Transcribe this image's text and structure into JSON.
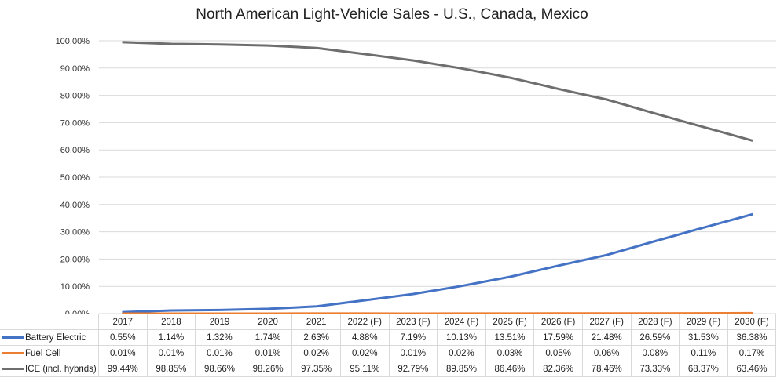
{
  "chart_data": {
    "type": "line",
    "title": "North American Light-Vehicle Sales - U.S., Canada, Mexico",
    "xlabel": "",
    "ylabel": "",
    "ylim": [
      0,
      100
    ],
    "yticks": [
      "0.00%",
      "10.00%",
      "20.00%",
      "30.00%",
      "40.00%",
      "50.00%",
      "60.00%",
      "70.00%",
      "80.00%",
      "90.00%",
      "100.00%"
    ],
    "grid": true,
    "legend": "data-table-bottom",
    "categories": [
      "2017",
      "2018",
      "2019",
      "2020",
      "2021",
      "2022 (F)",
      "2023 (F)",
      "2024 (F)",
      "2025 (F)",
      "2026 (F)",
      "2027 (F)",
      "2028 (F)",
      "2029 (F)",
      "2030 (F)"
    ],
    "series": [
      {
        "name": "Battery Electric",
        "color": "#4472c4",
        "values": [
          0.55,
          1.14,
          1.32,
          1.74,
          2.63,
          4.88,
          7.19,
          10.13,
          13.51,
          17.59,
          21.48,
          26.59,
          31.53,
          36.38
        ],
        "labels": [
          "0.55%",
          "1.14%",
          "1.32%",
          "1.74%",
          "2.63%",
          "4.88%",
          "7.19%",
          "10.13%",
          "13.51%",
          "17.59%",
          "21.48%",
          "26.59%",
          "31.53%",
          "36.38%"
        ]
      },
      {
        "name": "Fuel Cell",
        "color": "#ed7d31",
        "values": [
          0.01,
          0.01,
          0.01,
          0.01,
          0.02,
          0.02,
          0.01,
          0.02,
          0.03,
          0.05,
          0.06,
          0.08,
          0.11,
          0.17
        ],
        "labels": [
          "0.01%",
          "0.01%",
          "0.01%",
          "0.01%",
          "0.02%",
          "0.02%",
          "0.01%",
          "0.02%",
          "0.03%",
          "0.05%",
          "0.06%",
          "0.08%",
          "0.11%",
          "0.17%"
        ]
      },
      {
        "name": "ICE (incl. hybrids)",
        "color": "#6e6e6e",
        "values": [
          99.44,
          98.85,
          98.66,
          98.26,
          97.35,
          95.11,
          92.79,
          89.85,
          86.46,
          82.36,
          78.46,
          73.33,
          68.37,
          63.46
        ],
        "labels": [
          "99.44%",
          "98.85%",
          "98.66%",
          "98.26%",
          "97.35%",
          "95.11%",
          "92.79%",
          "89.85%",
          "86.46%",
          "82.36%",
          "78.46%",
          "73.33%",
          "68.37%",
          "63.46%"
        ]
      }
    ]
  }
}
